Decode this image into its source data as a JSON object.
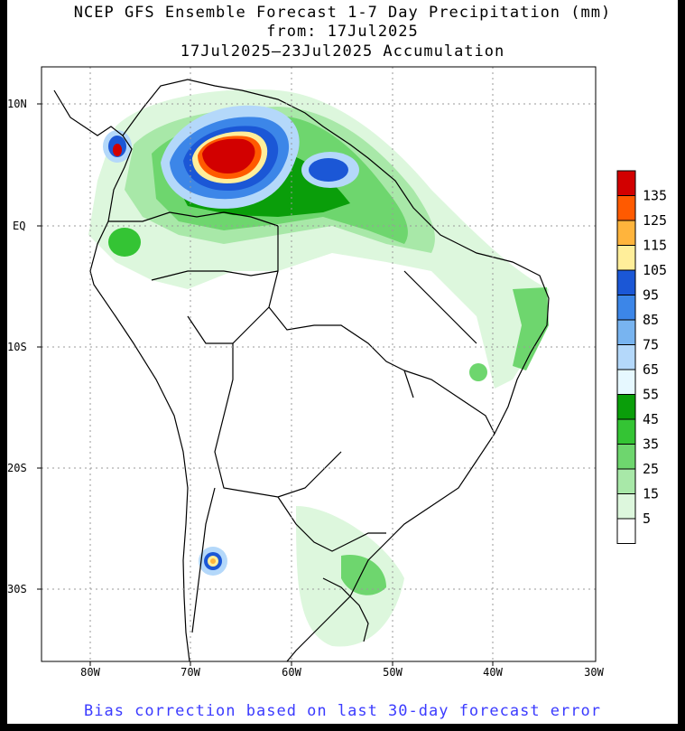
{
  "title": {
    "line1": "NCEP GFS Ensemble Forecast 1-7 Day Precipitation (mm)",
    "line2": "from: 17Jul2025",
    "line3": "17Jul2025–23Jul2025 Accumulation"
  },
  "axes": {
    "lat_labels": [
      "10N",
      "EQ",
      "10S",
      "20S",
      "30S"
    ],
    "lon_labels": [
      "80W",
      "70W",
      "60W",
      "50W",
      "40W",
      "30W"
    ]
  },
  "legend": {
    "labels": [
      "135",
      "125",
      "115",
      "105",
      "95",
      "85",
      "75",
      "65",
      "55",
      "45",
      "35",
      "25",
      "15",
      "5"
    ],
    "colors": [
      "#d20000",
      "#ff5a00",
      "#ffb43c",
      "#ffee9a",
      "#1b57d6",
      "#3c86e8",
      "#78b4f0",
      "#b4d8fa",
      "#e6f8ff",
      "#0a9e0a",
      "#34c434",
      "#6ed66e",
      "#a8e8a8",
      "#ddf7dd",
      "#ffffff"
    ]
  },
  "footer": "Bias correction based on last 30-day forecast error"
}
